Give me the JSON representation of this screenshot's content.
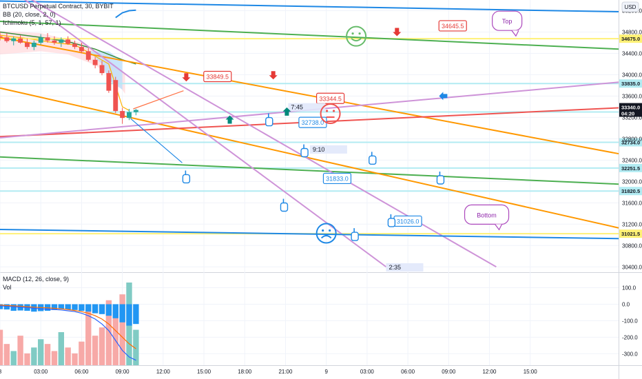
{
  "chart_meta": {
    "title": "BTCUSD Perpetual Contract, 30, BYBIT",
    "indicators": [
      "BB (20, close, 2, 0)",
      "Ichimoku (5, 1, 57, 1)"
    ],
    "macd_label": "MACD (12, 26, close, 9)",
    "vol_label": "Vol",
    "currency_button": "USD"
  },
  "chart_data": {
    "type": "candlestick",
    "price_axis": {
      "ylim": [
        30300,
        35400
      ],
      "ticks": [
        35200,
        34800,
        34400,
        34000,
        33600,
        33200,
        32800,
        32400,
        32000,
        31600,
        31200,
        30800,
        30400
      ],
      "tick_labels": [
        "35200.0",
        "34800.0",
        "34400.0",
        "34000.0",
        "33600.0",
        "33200.0",
        "32800.0",
        "32400.0",
        "32000.0",
        "31600.0",
        "31200.0",
        "30800.0",
        "30400.0"
      ]
    },
    "time_axis": {
      "labels": [
        "8",
        "03:00",
        "06:00",
        "09:00",
        "12:00",
        "15:00",
        "18:00",
        "21:00",
        "9",
        "03:00",
        "06:00",
        "09:00",
        "12:00",
        "15:00"
      ],
      "label_hours": [
        0,
        3,
        6,
        9,
        12,
        15,
        18,
        21,
        24,
        27,
        30,
        33,
        36,
        39
      ]
    },
    "horizontal_levels": [
      {
        "label": "34675.0",
        "value": 34675,
        "color": "#fff176"
      },
      {
        "label": "33835.0",
        "value": 33835,
        "color": "#b2ebf2"
      },
      {
        "label": "33302.0",
        "value": 33302,
        "color": "#b2ebf2"
      },
      {
        "label": "32734.0",
        "value": 32734,
        "color": "#b2ebf2"
      },
      {
        "label": "32251.5",
        "value": 32251.5,
        "color": "#b2ebf2"
      },
      {
        "label": "31820.5",
        "value": 31820.5,
        "color": "#b2ebf2"
      },
      {
        "label": "31021.5",
        "value": 31021.5,
        "color": "#fff176"
      }
    ],
    "last_price": {
      "value": 33340,
      "label": "33340.0",
      "countdown": "04:20"
    },
    "candles": [
      {
        "t": 0.0,
        "o": 34720,
        "h": 34800,
        "l": 34640,
        "c": 34700
      },
      {
        "t": 0.5,
        "o": 34700,
        "h": 34780,
        "l": 34600,
        "c": 34630
      },
      {
        "t": 1.0,
        "o": 34630,
        "h": 34720,
        "l": 34550,
        "c": 34680
      },
      {
        "t": 1.5,
        "o": 34680,
        "h": 34740,
        "l": 34580,
        "c": 34600
      },
      {
        "t": 2.0,
        "o": 34600,
        "h": 34680,
        "l": 34480,
        "c": 34520
      },
      {
        "t": 2.5,
        "o": 34520,
        "h": 34640,
        "l": 34460,
        "c": 34600
      },
      {
        "t": 3.0,
        "o": 34600,
        "h": 34760,
        "l": 34560,
        "c": 34700
      },
      {
        "t": 3.5,
        "o": 34700,
        "h": 34780,
        "l": 34600,
        "c": 34640
      },
      {
        "t": 4.0,
        "o": 34640,
        "h": 34720,
        "l": 34560,
        "c": 34600
      },
      {
        "t": 4.5,
        "o": 34600,
        "h": 34700,
        "l": 34520,
        "c": 34660
      },
      {
        "t": 5.0,
        "o": 34660,
        "h": 34720,
        "l": 34560,
        "c": 34580
      },
      {
        "t": 5.5,
        "o": 34580,
        "h": 34640,
        "l": 34480,
        "c": 34520
      },
      {
        "t": 6.0,
        "o": 34520,
        "h": 34600,
        "l": 34400,
        "c": 34440
      },
      {
        "t": 6.5,
        "o": 34440,
        "h": 34500,
        "l": 34250,
        "c": 34280
      },
      {
        "t": 7.0,
        "o": 34280,
        "h": 34330,
        "l": 34120,
        "c": 34180
      },
      {
        "t": 7.5,
        "o": 34180,
        "h": 34260,
        "l": 33990,
        "c": 34030
      },
      {
        "t": 8.0,
        "o": 34030,
        "h": 34080,
        "l": 33660,
        "c": 33700
      },
      {
        "t": 8.5,
        "o": 33900,
        "h": 33960,
        "l": 33280,
        "c": 33320
      },
      {
        "t": 9.0,
        "o": 33320,
        "h": 33380,
        "l": 33080,
        "c": 33190
      },
      {
        "t": 9.5,
        "o": 33190,
        "h": 33360,
        "l": 33150,
        "c": 33300
      },
      {
        "t": 10.0,
        "o": 33300,
        "h": 33360,
        "l": 33240,
        "c": 33340
      }
    ],
    "trendlines": [
      {
        "color": "#1e88e5",
        "from": [
          0.0,
          35380
        ],
        "to": [
          45.5,
          35180
        ]
      },
      {
        "color": "#4caf50",
        "from": [
          0.0,
          35000
        ],
        "to": [
          45.5,
          34480
        ]
      },
      {
        "color": "#4caf50",
        "from": [
          0.0,
          32460
        ],
        "to": [
          45.5,
          31950
        ]
      },
      {
        "color": "#ff9800",
        "from": [
          0.0,
          34700
        ],
        "to": [
          45.5,
          32520
        ]
      },
      {
        "color": "#ff9800",
        "from": [
          0.0,
          33750
        ],
        "to": [
          45.5,
          31130
        ]
      },
      {
        "color": "#ef5350",
        "from": [
          0.0,
          32840
        ],
        "to": [
          45.5,
          33380
        ]
      },
      {
        "color": "#ce93d8",
        "from": [
          0.0,
          32820
        ],
        "to": [
          45.5,
          33860
        ]
      },
      {
        "color": "#ce93d8",
        "from": [
          0.0,
          35750
        ],
        "to": [
          28.4,
          30400
        ]
      },
      {
        "color": "#ce93d8",
        "from": [
          1.0,
          35600
        ],
        "to": [
          36.5,
          30400
        ]
      },
      {
        "color": "#1e88e5",
        "from": [
          0.0,
          31100
        ],
        "to": [
          45.5,
          30930
        ]
      }
    ],
    "price_labels": [
      {
        "text": "34645.5",
        "color": "#e53935",
        "time": 33.3,
        "price": 34910
      },
      {
        "text": "33849.5",
        "color": "#e53935",
        "time": 16.0,
        "price": 33960
      },
      {
        "text": "33344.5",
        "color": "#e53935",
        "time": 24.3,
        "price": 33550
      },
      {
        "text": "32738.0",
        "color": "#1e88e5",
        "time": 23.0,
        "price": 33100
      },
      {
        "text": "31833.0",
        "color": "#1e88e5",
        "time": 24.8,
        "price": 32050
      },
      {
        "text": "31026.0",
        "color": "#1e88e5",
        "time": 30.0,
        "price": 31250
      }
    ],
    "callouts": [
      {
        "text": "Top",
        "time": 37.3,
        "price": 35010
      },
      {
        "text": "Bottom",
        "time": 35.8,
        "price": 31380
      }
    ],
    "duration_labels": [
      {
        "text": "7:45",
        "time": 21.4,
        "price": 33390
      },
      {
        "text": "9:10",
        "time": 23.0,
        "price": 32600
      },
      {
        "text": "2:35",
        "time": 28.6,
        "price": 30390
      }
    ],
    "sub_pane": {
      "title": "MACD (12, 26, close, 9)",
      "ylim": [
        -370,
        190
      ],
      "ticks": [
        100,
        0,
        -100,
        -200,
        -300
      ],
      "tick_labels": [
        "100.0",
        "0.0",
        "-100.0",
        "-200.0",
        "-300.0"
      ],
      "macd_hist": [
        -30,
        -32,
        -40,
        -38,
        -40,
        -45,
        -42,
        -40,
        -35,
        -30,
        -32,
        -35,
        -40,
        -45,
        -55,
        -60,
        -70,
        -85,
        -110,
        -130,
        -120
      ],
      "macd_line": [
        -10,
        -12,
        -15,
        -18,
        -20,
        -25,
        -28,
        -30,
        -32,
        -35,
        -40,
        -45,
        -55,
        -70,
        -90,
        -120,
        -160,
        -220,
        -280,
        -320,
        -340
      ],
      "signal_line": [
        -5,
        -8,
        -10,
        -12,
        -15,
        -18,
        -20,
        -22,
        -25,
        -28,
        -32,
        -38,
        -45,
        -55,
        -70,
        -90,
        -120,
        -160,
        -200,
        -240,
        -270
      ],
      "volume": [
        30,
        18,
        12,
        25,
        10,
        15,
        22,
        18,
        12,
        28,
        15,
        10,
        20,
        48,
        25,
        32,
        55,
        45,
        60,
        70,
        30
      ]
    }
  }
}
